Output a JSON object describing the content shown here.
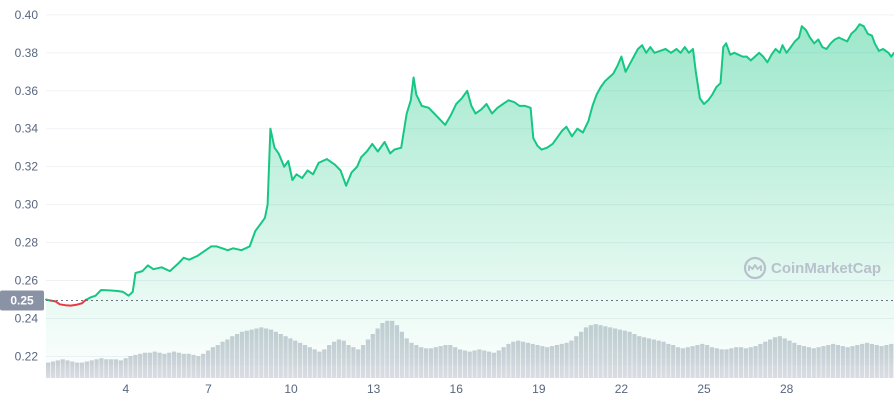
{
  "chart_data": {
    "type": "area",
    "title": "",
    "xlabel": "",
    "ylabel": "",
    "ylim": [
      0.2155,
      0.4015
    ],
    "y_ticks": [
      0.4,
      0.38,
      0.36,
      0.34,
      0.32,
      0.3,
      0.28,
      0.26,
      0.24,
      0.22
    ],
    "y_tick_labels": [
      "0.40",
      "0.38",
      "0.36",
      "0.34",
      "0.32",
      "0.30",
      "0.28",
      "0.26",
      "0.24",
      "0.22"
    ],
    "x_range": [
      1.1,
      31.9
    ],
    "x_ticks": [
      4,
      7,
      10,
      13,
      16,
      19,
      22,
      25,
      28
    ],
    "x_tick_labels": [
      "4",
      "7",
      "10",
      "13",
      "16",
      "19",
      "22",
      "25",
      "28"
    ],
    "grid": true,
    "baseline": {
      "value": 0.2495,
      "label": "0.25"
    },
    "colors": {
      "up_line": "#16c784",
      "down_line": "#ea3943",
      "area_fill": "#16c784",
      "volume_fill": "#c9ced6",
      "baseline_badge": "#8a93a6"
    },
    "price_series": {
      "name": "",
      "points": [
        [
          1.1,
          0.25
        ],
        [
          1.25,
          0.2495
        ],
        [
          1.45,
          0.249
        ],
        [
          1.6,
          0.2475
        ],
        [
          1.8,
          0.247
        ],
        [
          2.0,
          0.2468
        ],
        [
          2.2,
          0.2472
        ],
        [
          2.4,
          0.248
        ],
        [
          2.55,
          0.2498
        ],
        [
          2.7,
          0.251
        ],
        [
          2.9,
          0.252
        ],
        [
          3.1,
          0.255
        ],
        [
          3.4,
          0.2548
        ],
        [
          3.7,
          0.2545
        ],
        [
          3.9,
          0.254
        ],
        [
          4.1,
          0.252
        ],
        [
          4.25,
          0.254
        ],
        [
          4.35,
          0.264
        ],
        [
          4.6,
          0.265
        ],
        [
          4.8,
          0.268
        ],
        [
          5.0,
          0.266
        ],
        [
          5.3,
          0.267
        ],
        [
          5.6,
          0.265
        ],
        [
          5.9,
          0.269
        ],
        [
          6.1,
          0.272
        ],
        [
          6.3,
          0.271
        ],
        [
          6.6,
          0.273
        ],
        [
          6.9,
          0.276
        ],
        [
          7.1,
          0.278
        ],
        [
          7.3,
          0.278
        ],
        [
          7.5,
          0.277
        ],
        [
          7.7,
          0.276
        ],
        [
          7.9,
          0.277
        ],
        [
          8.2,
          0.276
        ],
        [
          8.5,
          0.278
        ],
        [
          8.7,
          0.286
        ],
        [
          8.9,
          0.29
        ],
        [
          9.05,
          0.293
        ],
        [
          9.15,
          0.3
        ],
        [
          9.25,
          0.34
        ],
        [
          9.4,
          0.33
        ],
        [
          9.55,
          0.327
        ],
        [
          9.75,
          0.32
        ],
        [
          9.9,
          0.323
        ],
        [
          10.05,
          0.313
        ],
        [
          10.2,
          0.316
        ],
        [
          10.4,
          0.314
        ],
        [
          10.6,
          0.318
        ],
        [
          10.8,
          0.316
        ],
        [
          11.0,
          0.322
        ],
        [
          11.3,
          0.324
        ],
        [
          11.6,
          0.321
        ],
        [
          11.8,
          0.318
        ],
        [
          12.0,
          0.31
        ],
        [
          12.2,
          0.317
        ],
        [
          12.4,
          0.32
        ],
        [
          12.55,
          0.325
        ],
        [
          12.75,
          0.328
        ],
        [
          12.95,
          0.332
        ],
        [
          13.15,
          0.328
        ],
        [
          13.4,
          0.333
        ],
        [
          13.6,
          0.327
        ],
        [
          13.75,
          0.329
        ],
        [
          14.0,
          0.33
        ],
        [
          14.2,
          0.348
        ],
        [
          14.35,
          0.355
        ],
        [
          14.45,
          0.367
        ],
        [
          14.55,
          0.358
        ],
        [
          14.75,
          0.352
        ],
        [
          15.0,
          0.351
        ],
        [
          15.2,
          0.348
        ],
        [
          15.4,
          0.345
        ],
        [
          15.6,
          0.342
        ],
        [
          15.8,
          0.347
        ],
        [
          16.0,
          0.353
        ],
        [
          16.2,
          0.356
        ],
        [
          16.4,
          0.36
        ],
        [
          16.55,
          0.352
        ],
        [
          16.7,
          0.348
        ],
        [
          16.9,
          0.35
        ],
        [
          17.1,
          0.353
        ],
        [
          17.3,
          0.348
        ],
        [
          17.5,
          0.351
        ],
        [
          17.7,
          0.353
        ],
        [
          17.9,
          0.355
        ],
        [
          18.1,
          0.354
        ],
        [
          18.3,
          0.352
        ],
        [
          18.5,
          0.352
        ],
        [
          18.7,
          0.351
        ],
        [
          18.8,
          0.335
        ],
        [
          18.95,
          0.331
        ],
        [
          19.1,
          0.329
        ],
        [
          19.3,
          0.33
        ],
        [
          19.5,
          0.332
        ],
        [
          19.7,
          0.336
        ],
        [
          19.85,
          0.339
        ],
        [
          20.0,
          0.341
        ],
        [
          20.2,
          0.336
        ],
        [
          20.4,
          0.34
        ],
        [
          20.6,
          0.338
        ],
        [
          20.8,
          0.344
        ],
        [
          20.95,
          0.352
        ],
        [
          21.1,
          0.358
        ],
        [
          21.25,
          0.362
        ],
        [
          21.4,
          0.365
        ],
        [
          21.55,
          0.367
        ],
        [
          21.7,
          0.369
        ],
        [
          21.85,
          0.373
        ],
        [
          22.0,
          0.378
        ],
        [
          22.15,
          0.37
        ],
        [
          22.3,
          0.374
        ],
        [
          22.45,
          0.378
        ],
        [
          22.6,
          0.382
        ],
        [
          22.75,
          0.384
        ],
        [
          22.9,
          0.38
        ],
        [
          23.05,
          0.383
        ],
        [
          23.2,
          0.38
        ],
        [
          23.4,
          0.381
        ],
        [
          23.6,
          0.382
        ],
        [
          23.8,
          0.38
        ],
        [
          24.0,
          0.382
        ],
        [
          24.15,
          0.38
        ],
        [
          24.3,
          0.383
        ],
        [
          24.45,
          0.38
        ],
        [
          24.6,
          0.382
        ],
        [
          24.7,
          0.37
        ],
        [
          24.85,
          0.356
        ],
        [
          25.0,
          0.353
        ],
        [
          25.15,
          0.355
        ],
        [
          25.3,
          0.358
        ],
        [
          25.45,
          0.362
        ],
        [
          25.6,
          0.364
        ],
        [
          25.7,
          0.383
        ],
        [
          25.8,
          0.385
        ],
        [
          25.95,
          0.379
        ],
        [
          26.1,
          0.38
        ],
        [
          26.25,
          0.379
        ],
        [
          26.4,
          0.378
        ],
        [
          26.55,
          0.378
        ],
        [
          26.7,
          0.376
        ],
        [
          26.85,
          0.378
        ],
        [
          27.0,
          0.38
        ],
        [
          27.15,
          0.378
        ],
        [
          27.3,
          0.375
        ],
        [
          27.45,
          0.379
        ],
        [
          27.6,
          0.382
        ],
        [
          27.75,
          0.38
        ],
        [
          27.85,
          0.384
        ],
        [
          28.0,
          0.38
        ],
        [
          28.15,
          0.383
        ],
        [
          28.3,
          0.386
        ],
        [
          28.45,
          0.388
        ],
        [
          28.55,
          0.394
        ],
        [
          28.7,
          0.392
        ],
        [
          28.85,
          0.388
        ],
        [
          29.0,
          0.385
        ],
        [
          29.15,
          0.387
        ],
        [
          29.3,
          0.383
        ],
        [
          29.45,
          0.382
        ],
        [
          29.6,
          0.385
        ],
        [
          29.75,
          0.387
        ],
        [
          29.9,
          0.388
        ],
        [
          30.05,
          0.387
        ],
        [
          30.2,
          0.386
        ],
        [
          30.35,
          0.39
        ],
        [
          30.5,
          0.392
        ],
        [
          30.65,
          0.395
        ],
        [
          30.8,
          0.394
        ],
        [
          30.95,
          0.39
        ],
        [
          31.1,
          0.389
        ],
        [
          31.2,
          0.385
        ],
        [
          31.35,
          0.381
        ],
        [
          31.5,
          0.382
        ],
        [
          31.7,
          0.38
        ],
        [
          31.8,
          0.378
        ],
        [
          31.9,
          0.38
        ]
      ]
    },
    "volume_series": {
      "name": "",
      "levels": [
        0.14,
        0.15,
        0.16,
        0.17,
        0.16,
        0.15,
        0.14,
        0.14,
        0.15,
        0.16,
        0.17,
        0.18,
        0.17,
        0.17,
        0.17,
        0.16,
        0.18,
        0.2,
        0.21,
        0.22,
        0.23,
        0.23,
        0.24,
        0.23,
        0.22,
        0.23,
        0.24,
        0.23,
        0.22,
        0.22,
        0.21,
        0.2,
        0.22,
        0.25,
        0.28,
        0.3,
        0.33,
        0.35,
        0.38,
        0.4,
        0.42,
        0.43,
        0.44,
        0.45,
        0.46,
        0.45,
        0.44,
        0.42,
        0.4,
        0.38,
        0.36,
        0.34,
        0.32,
        0.3,
        0.28,
        0.26,
        0.24,
        0.26,
        0.3,
        0.33,
        0.35,
        0.34,
        0.3,
        0.28,
        0.26,
        0.3,
        0.35,
        0.4,
        0.45,
        0.5,
        0.52,
        0.52,
        0.48,
        0.42,
        0.36,
        0.32,
        0.3,
        0.28,
        0.27,
        0.27,
        0.28,
        0.29,
        0.3,
        0.3,
        0.28,
        0.26,
        0.25,
        0.24,
        0.25,
        0.26,
        0.25,
        0.24,
        0.23,
        0.25,
        0.28,
        0.31,
        0.33,
        0.34,
        0.33,
        0.32,
        0.31,
        0.3,
        0.29,
        0.28,
        0.29,
        0.3,
        0.31,
        0.32,
        0.34,
        0.38,
        0.42,
        0.46,
        0.48,
        0.49,
        0.48,
        0.47,
        0.46,
        0.45,
        0.44,
        0.43,
        0.42,
        0.4,
        0.38,
        0.37,
        0.36,
        0.35,
        0.34,
        0.33,
        0.31,
        0.3,
        0.28,
        0.27,
        0.28,
        0.29,
        0.3,
        0.31,
        0.3,
        0.28,
        0.27,
        0.26,
        0.26,
        0.27,
        0.28,
        0.28,
        0.27,
        0.28,
        0.29,
        0.31,
        0.33,
        0.35,
        0.37,
        0.38,
        0.36,
        0.34,
        0.32,
        0.3,
        0.29,
        0.28,
        0.27,
        0.28,
        0.29,
        0.3,
        0.31,
        0.3,
        0.29,
        0.28,
        0.29,
        0.3,
        0.31,
        0.32,
        0.31,
        0.3,
        0.29,
        0.3,
        0.31
      ]
    }
  },
  "watermark": {
    "text": "CoinMarketCap",
    "icon": "coinmarketcap-logo-icon"
  }
}
